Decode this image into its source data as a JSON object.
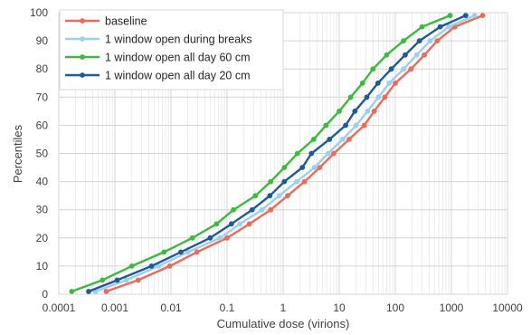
{
  "chart_data": {
    "type": "line",
    "xlabel": "Cumulative dose (virions)",
    "ylabel": "Percentiles",
    "xscale": "log",
    "xlim": [
      0.0001,
      10000
    ],
    "ylim": [
      0,
      100
    ],
    "xticks": [
      "0.0001",
      "0.001",
      "0.01",
      "0.1",
      "1",
      "10",
      "100",
      "1000",
      "10000"
    ],
    "yticks": [
      "0",
      "10",
      "20",
      "30",
      "40",
      "50",
      "60",
      "70",
      "80",
      "90",
      "100"
    ],
    "grid": {
      "major": true,
      "minor_x": true
    },
    "legend_position": "top-left",
    "series": [
      {
        "name": "baseline",
        "color": "#ed6b56",
        "points": [
          [
            0.0007,
            1
          ],
          [
            0.0026,
            5
          ],
          [
            0.0095,
            10
          ],
          [
            0.029,
            15
          ],
          [
            0.1,
            20
          ],
          [
            0.25,
            25
          ],
          [
            0.6,
            30
          ],
          [
            1.2,
            35
          ],
          [
            2.4,
            40
          ],
          [
            4.5,
            45
          ],
          [
            8,
            50
          ],
          [
            15,
            55
          ],
          [
            28,
            60
          ],
          [
            42,
            65
          ],
          [
            65,
            70
          ],
          [
            100,
            75
          ],
          [
            190,
            80
          ],
          [
            330,
            85
          ],
          [
            560,
            90
          ],
          [
            1150,
            95
          ],
          [
            3600,
            99
          ]
        ]
      },
      {
        "name": "1 window open during breaks",
        "color": "#9ccfef",
        "points": [
          [
            0.00045,
            1
          ],
          [
            0.0016,
            5
          ],
          [
            0.006,
            10
          ],
          [
            0.02,
            15
          ],
          [
            0.075,
            20
          ],
          [
            0.17,
            25
          ],
          [
            0.42,
            30
          ],
          [
            0.85,
            35
          ],
          [
            1.75,
            40
          ],
          [
            3.6,
            45
          ],
          [
            6.3,
            50
          ],
          [
            11.5,
            55
          ],
          [
            20,
            60
          ],
          [
            32,
            65
          ],
          [
            50,
            70
          ],
          [
            78,
            75
          ],
          [
            140,
            80
          ],
          [
            240,
            85
          ],
          [
            420,
            90
          ],
          [
            900,
            95
          ],
          [
            2600,
            99
          ]
        ]
      },
      {
        "name": "1 window open all day 60 cm",
        "color": "#3cba3c",
        "points": [
          [
            0.00017,
            1
          ],
          [
            0.0006,
            5
          ],
          [
            0.002,
            10
          ],
          [
            0.0075,
            15
          ],
          [
            0.024,
            20
          ],
          [
            0.065,
            25
          ],
          [
            0.13,
            30
          ],
          [
            0.32,
            35
          ],
          [
            0.6,
            40
          ],
          [
            1.05,
            45
          ],
          [
            1.8,
            50
          ],
          [
            3.5,
            55
          ],
          [
            5.8,
            60
          ],
          [
            10,
            65
          ],
          [
            16,
            70
          ],
          [
            26,
            75
          ],
          [
            40,
            80
          ],
          [
            70,
            85
          ],
          [
            140,
            90
          ],
          [
            300,
            95
          ],
          [
            950,
            99
          ]
        ]
      },
      {
        "name": "1 window open all day 20 cm",
        "color": "#1f5a96",
        "points": [
          [
            0.00034,
            1
          ],
          [
            0.0011,
            5
          ],
          [
            0.0045,
            10
          ],
          [
            0.015,
            15
          ],
          [
            0.05,
            20
          ],
          [
            0.12,
            25
          ],
          [
            0.28,
            30
          ],
          [
            0.58,
            35
          ],
          [
            1.05,
            40
          ],
          [
            2.2,
            45
          ],
          [
            3.2,
            50
          ],
          [
            6.7,
            55
          ],
          [
            13,
            60
          ],
          [
            19,
            65
          ],
          [
            31,
            70
          ],
          [
            49,
            75
          ],
          [
            85,
            80
          ],
          [
            150,
            85
          ],
          [
            270,
            90
          ],
          [
            630,
            95
          ],
          [
            1800,
            99
          ]
        ]
      }
    ]
  }
}
